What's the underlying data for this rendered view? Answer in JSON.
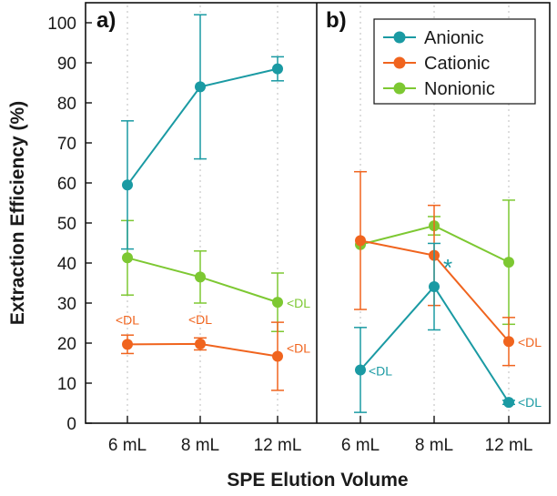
{
  "chart_data": {
    "type": "line",
    "ylabel": "Extraction Efficiency (%)",
    "xlabel": "SPE Elution Volume",
    "ylim": [
      0,
      105
    ],
    "yticks": [
      0,
      10,
      20,
      30,
      40,
      50,
      60,
      70,
      80,
      90,
      100
    ],
    "grid": "dotted vertical",
    "categories": [
      "6 mL",
      "8 mL",
      "12 mL"
    ],
    "colors": {
      "Anionic": "#1a9aa3",
      "Cationic": "#f0641e",
      "Nonionic": "#7dc832"
    },
    "legend": {
      "placement": "top-right of panel b",
      "entries": [
        "Anionic",
        "Cationic",
        "Nonionic"
      ]
    },
    "panels": [
      {
        "label": "a)",
        "series": [
          {
            "name": "Anionic",
            "values": [
              59.5,
              84,
              88.5
            ],
            "errors": [
              16,
              18,
              3
            ],
            "annotations": [
              "",
              "",
              ""
            ]
          },
          {
            "name": "Cationic",
            "values": [
              19.7,
              19.8,
              16.7
            ],
            "errors": [
              2.3,
              1.5,
              8.5
            ],
            "annotations": [
              "<DL",
              "<DL",
              "<DL"
            ]
          },
          {
            "name": "Nonionic",
            "values": [
              41.3,
              36.5,
              30.2
            ],
            "errors": [
              9.3,
              6.5,
              7.3
            ],
            "annotations": [
              "",
              "",
              "<DL"
            ]
          }
        ]
      },
      {
        "label": "b)",
        "series": [
          {
            "name": "Anionic",
            "values": [
              13.3,
              34.1,
              5.2
            ],
            "errors": [
              10.6,
              10.8,
              0.5
            ],
            "annotations": [
              "<DL",
              "*",
              "<DL"
            ]
          },
          {
            "name": "Cationic",
            "values": [
              45.6,
              41.9,
              20.4
            ],
            "errors": [
              17.2,
              12.5,
              6.0
            ],
            "annotations": [
              "",
              "",
              "<DL"
            ]
          },
          {
            "name": "Nonionic",
            "values": [
              44.6,
              49.3,
              40.2
            ],
            "errors": [
              0,
              2.3,
              15.5
            ],
            "annotations": [
              "",
              "",
              ""
            ]
          }
        ]
      }
    ]
  }
}
